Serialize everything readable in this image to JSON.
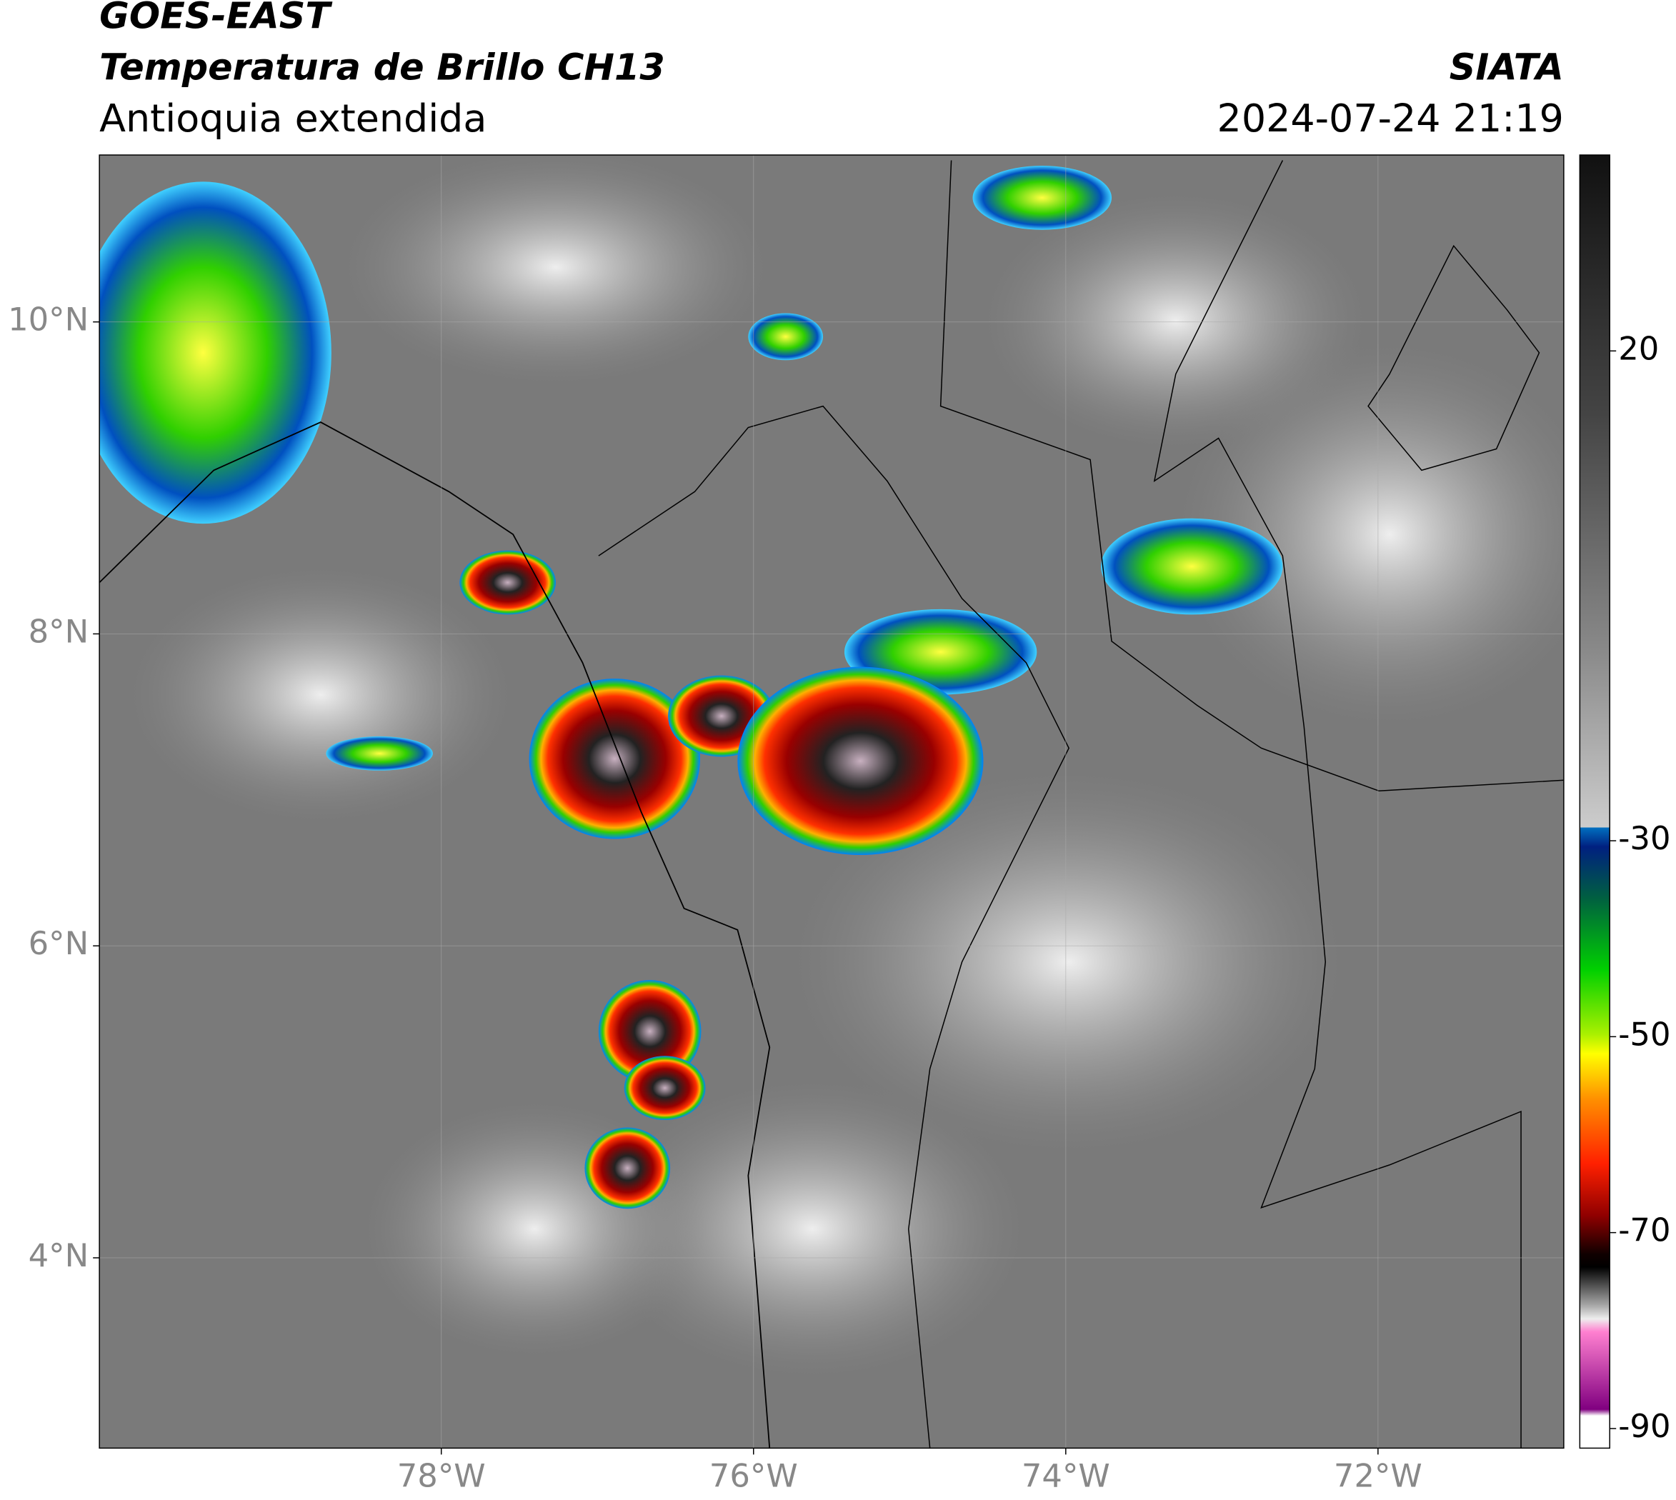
{
  "header": {
    "satellite": "GOES-EAST",
    "product": "Temperatura de Brillo CH13",
    "region": "Antioquia extendida",
    "source": "SIATA",
    "datetime": "2024-07-24 21:19"
  },
  "map": {
    "xlim": [
      -80.19,
      -70.81
    ],
    "ylim": [
      2.78,
      11.07
    ],
    "xticks": [
      {
        "value": -78,
        "label": "78°W"
      },
      {
        "value": -76,
        "label": "76°W"
      },
      {
        "value": -74,
        "label": "74°W"
      },
      {
        "value": -72,
        "label": "72°W"
      }
    ],
    "yticks": [
      {
        "value": 4,
        "label": "4°N"
      },
      {
        "value": 6,
        "label": "6°N"
      },
      {
        "value": 8,
        "label": "8°N"
      },
      {
        "value": 10,
        "label": "10°N"
      }
    ],
    "grid": true
  },
  "colorbar": {
    "lim": [
      -92,
      40
    ],
    "ticks": [
      20,
      -30,
      -50,
      -70,
      -90
    ]
  }
}
